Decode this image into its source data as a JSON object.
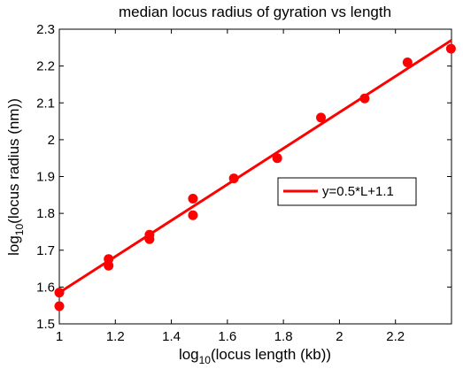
{
  "chart_data": {
    "type": "scatter",
    "title": "median locus radius of gyration vs length",
    "xlabel": {
      "prefix": "log",
      "sub": "10",
      "rest": "(locus length (kb))"
    },
    "ylabel": {
      "prefix": "log",
      "sub": "10",
      "rest": "(locus radius (nm))"
    },
    "xlim": [
      1,
      2.4
    ],
    "ylim": [
      1.5,
      2.3
    ],
    "xticks": [
      1,
      1.2,
      1.4,
      1.6,
      1.8,
      2,
      2.2
    ],
    "xtick_labels": [
      "1",
      "1.2",
      "1.4",
      "1.6",
      "1.8",
      "2",
      "2.2"
    ],
    "yticks": [
      1.5,
      1.6,
      1.7,
      1.8,
      1.9,
      2.0,
      2.1,
      2.2,
      2.3
    ],
    "ytick_labels": [
      "1.5",
      "1.6",
      "1.7",
      "1.8",
      "1.9",
      "2",
      "2.1",
      "2.2",
      "2.3"
    ],
    "grid": false,
    "legend_position": "right-middle",
    "color": "#ff0000",
    "series": [
      {
        "kind": "points",
        "x": [
          1.0,
          1.0,
          1.176,
          1.176,
          1.322,
          1.322,
          1.477,
          1.477,
          1.623,
          1.778,
          1.934,
          2.09,
          2.243,
          2.398
        ],
        "y": [
          1.548,
          1.585,
          1.658,
          1.676,
          1.73,
          1.742,
          1.795,
          1.84,
          1.895,
          1.95,
          2.06,
          2.112,
          2.21,
          2.247
        ]
      },
      {
        "kind": "line",
        "name": "y=0.5*L+1.1",
        "x": [
          1.0,
          2.4
        ],
        "y": [
          1.585,
          2.27
        ]
      }
    ]
  }
}
